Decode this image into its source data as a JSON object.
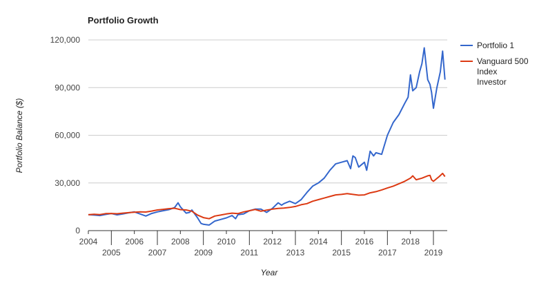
{
  "chart_data": {
    "type": "line",
    "title": "Portfolio Growth",
    "xlabel": "Year",
    "ylabel": "Portfolio Balance ($)",
    "xlim": [
      2004.0,
      2019.6
    ],
    "ylim": [
      0,
      120000
    ],
    "y_ticks": [
      0,
      30000,
      60000,
      90000,
      120000
    ],
    "y_tick_labels": [
      "0",
      "30,000",
      "60,000",
      "90,000",
      "120,000"
    ],
    "x_tick_years": [
      2004,
      2005,
      2006,
      2007,
      2008,
      2009,
      2010,
      2011,
      2012,
      2013,
      2014,
      2015,
      2016,
      2017,
      2018,
      2019
    ],
    "x_tick_labels": [
      "2004",
      "2005",
      "2006",
      "2007",
      "2008",
      "2009",
      "2010",
      "2011",
      "2012",
      "2013",
      "2014",
      "2015",
      "2016",
      "2017",
      "2018",
      "2019"
    ],
    "grid": true,
    "legend_position": "right",
    "series": [
      {
        "name": "Portfolio 1",
        "color": "#3366cc",
        "x": [
          2004.0,
          2004.25,
          2004.5,
          2004.75,
          2005.0,
          2005.25,
          2005.5,
          2005.75,
          2006.0,
          2006.25,
          2006.5,
          2006.75,
          2007.0,
          2007.25,
          2007.5,
          2007.75,
          2007.9,
          2008.0,
          2008.25,
          2008.4,
          2008.5,
          2008.75,
          2008.9,
          2009.0,
          2009.1,
          2009.25,
          2009.5,
          2009.75,
          2010.0,
          2010.25,
          2010.4,
          2010.5,
          2010.75,
          2011.0,
          2011.25,
          2011.5,
          2011.75,
          2012.0,
          2012.25,
          2012.4,
          2012.5,
          2012.75,
          2013.0,
          2013.25,
          2013.5,
          2013.75,
          2014.0,
          2014.25,
          2014.5,
          2014.75,
          2015.0,
          2015.25,
          2015.4,
          2015.5,
          2015.6,
          2015.75,
          2016.0,
          2016.1,
          2016.25,
          2016.4,
          2016.5,
          2016.75,
          2017.0,
          2017.25,
          2017.5,
          2017.75,
          2017.9,
          2018.0,
          2018.1,
          2018.25,
          2018.4,
          2018.5,
          2018.6,
          2018.75,
          2018.85,
          2018.92,
          2019.0,
          2019.15,
          2019.3,
          2019.4,
          2019.5
        ],
        "y": [
          10000,
          9800,
          9500,
          10200,
          10800,
          9900,
          10500,
          11200,
          11800,
          10500,
          9200,
          10800,
          11800,
          12500,
          13200,
          14500,
          17500,
          15000,
          11000,
          11500,
          13000,
          8000,
          4500,
          4000,
          3800,
          3500,
          6000,
          7000,
          8000,
          9500,
          7500,
          10000,
          10500,
          12500,
          13500,
          13500,
          11500,
          14000,
          17500,
          16000,
          17000,
          18500,
          17000,
          19500,
          24000,
          28000,
          30000,
          33000,
          38000,
          42000,
          43000,
          44000,
          39000,
          47000,
          46000,
          40000,
          43000,
          38000,
          50000,
          47000,
          49000,
          48000,
          60000,
          68000,
          73000,
          80000,
          84000,
          98000,
          88000,
          90000,
          100000,
          105000,
          115000,
          95000,
          92000,
          87000,
          77000,
          90000,
          100000,
          113000,
          95000
        ]
      },
      {
        "name": "Vanguard 500 Index Investor",
        "color": "#dc3912",
        "x": [
          2004.0,
          2004.25,
          2004.5,
          2004.75,
          2005.0,
          2005.25,
          2005.5,
          2005.75,
          2006.0,
          2006.25,
          2006.5,
          2006.75,
          2007.0,
          2007.25,
          2007.5,
          2007.75,
          2008.0,
          2008.25,
          2008.5,
          2008.75,
          2009.0,
          2009.25,
          2009.5,
          2009.75,
          2010.0,
          2010.25,
          2010.5,
          2010.75,
          2011.0,
          2011.25,
          2011.5,
          2011.75,
          2012.0,
          2012.25,
          2012.5,
          2012.75,
          2013.0,
          2013.25,
          2013.5,
          2013.75,
          2014.0,
          2014.25,
          2014.5,
          2014.75,
          2015.0,
          2015.25,
          2015.5,
          2015.75,
          2016.0,
          2016.25,
          2016.5,
          2016.75,
          2017.0,
          2017.25,
          2017.5,
          2017.75,
          2018.0,
          2018.1,
          2018.25,
          2018.5,
          2018.75,
          2018.85,
          2018.92,
          2019.0,
          2019.25,
          2019.4,
          2019.5
        ],
        "y": [
          10000,
          10300,
          10100,
          10700,
          10800,
          10600,
          11000,
          11300,
          11600,
          11800,
          11700,
          12300,
          13000,
          13400,
          13800,
          14100,
          13200,
          13000,
          12200,
          9800,
          8200,
          7500,
          9200,
          9800,
          10500,
          11000,
          10700,
          11800,
          12500,
          13300,
          12200,
          12900,
          13500,
          14000,
          14200,
          14600,
          15200,
          16300,
          17000,
          18500,
          19500,
          20500,
          21500,
          22500,
          22800,
          23300,
          22800,
          22300,
          22500,
          23800,
          24500,
          25600,
          26800,
          28000,
          29500,
          31000,
          33000,
          34500,
          32000,
          33000,
          34500,
          34800,
          32000,
          31000,
          34000,
          36000,
          34000
        ]
      }
    ]
  }
}
